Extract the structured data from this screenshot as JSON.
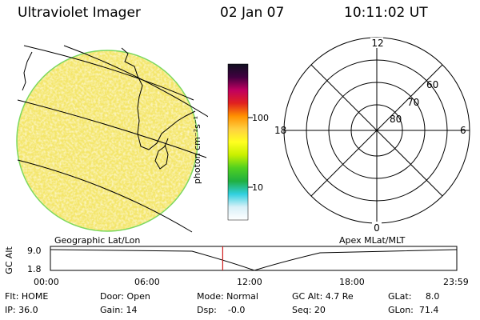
{
  "header": {
    "title": "Ultraviolet Imager",
    "date": "02 Jan 07",
    "time": "10:11:02 UT"
  },
  "colorbar": {
    "unit_label": "photon cm⁻²s⁻¹",
    "tick_100": "100",
    "tick_10": "10",
    "stops": [
      "#ffffff",
      "#d8f0f8",
      "#30d0e0",
      "#20b040",
      "#50d020",
      "#c8f000",
      "#ffff20",
      "#ffd040",
      "#ff9000",
      "#e02020",
      "#c00060",
      "#400040",
      "#101020"
    ]
  },
  "polar": {
    "label_top": "12",
    "label_left": "18",
    "label_right": "6",
    "label_bottom": "0",
    "lat_60": "60",
    "lat_70": "70",
    "lat_80": "80"
  },
  "timeline": {
    "left_label": "Geographic Lat/Lon",
    "right_label": "Apex MLat/MLT",
    "yaxis_label": "GC Alt",
    "y_max": "9.0",
    "y_min": "1.8",
    "current_time_fraction": 0.424,
    "ticks": [
      "00:00",
      "06:00",
      "12:00",
      "18:00",
      "23:59"
    ]
  },
  "info": {
    "flt": "Flt: HOME",
    "ip": "IP: 36.0",
    "door": "Door: Open",
    "gain": "Gain: 14",
    "mode": "Mode: Normal",
    "dsp": "Dsp:    -0.0",
    "gc_alt": "GC Alt: 4.7 Re",
    "seq": "Seq: 20",
    "glat": "GLat:     8.0",
    "glon": "GLon:  71.4"
  },
  "colors": {
    "image_base": "#f4e66a",
    "image_edge": "#7cd860",
    "marker": "#d02020"
  }
}
